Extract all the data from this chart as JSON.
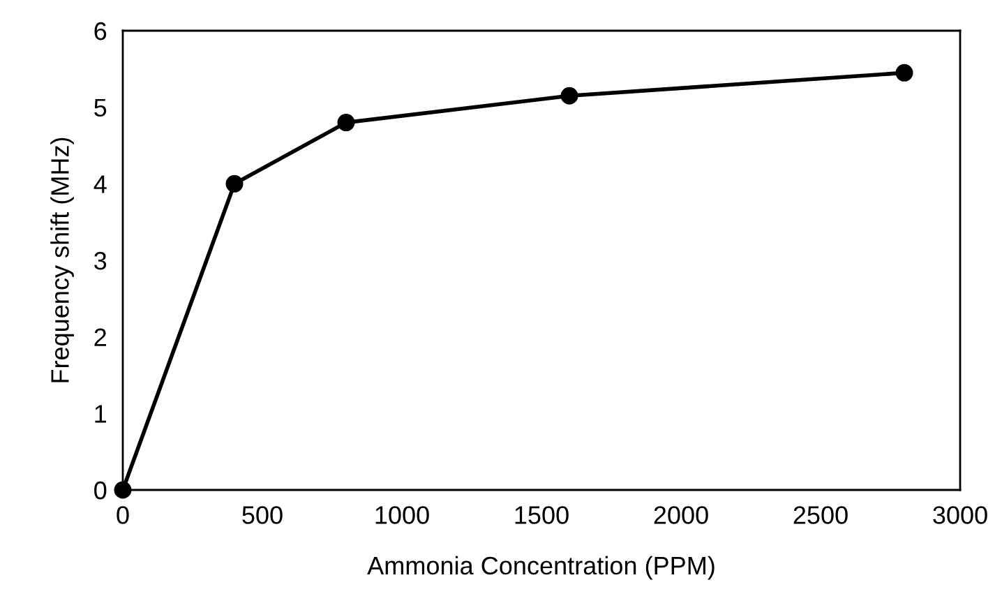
{
  "chart_data": {
    "type": "line",
    "xlabel": "Ammonia Concentration (PPM)",
    "ylabel": "Frequency shift (MHz)",
    "x": [
      0,
      400,
      800,
      1600,
      2800
    ],
    "series": [
      {
        "color": "#000000",
        "values": [
          0,
          4.0,
          4.8,
          5.15,
          5.45
        ]
      }
    ],
    "marker": "circle",
    "line_style": "solid",
    "grid": false,
    "xlim": [
      0,
      3000
    ],
    "xticks": [
      0,
      500,
      1000,
      1500,
      2000,
      2500,
      3000
    ],
    "ylim": [
      0,
      6
    ],
    "yticks": [
      0,
      1,
      2,
      3,
      4,
      5,
      6
    ]
  }
}
